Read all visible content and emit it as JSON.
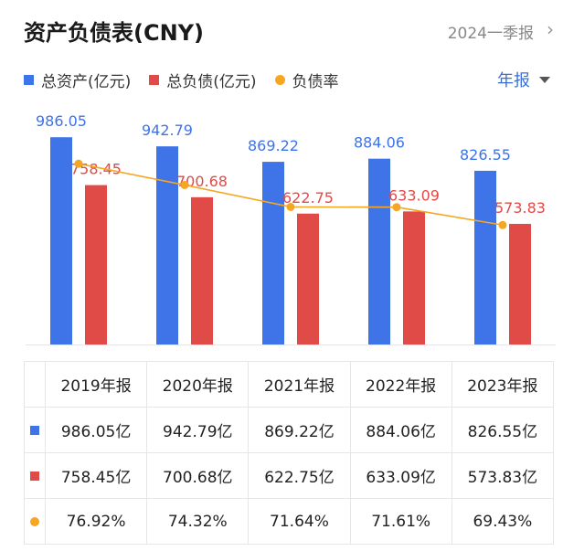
{
  "header": {
    "title": "资产负债表(CNY)",
    "period": "2024一季报",
    "chevron_icon": "chevron-right-icon"
  },
  "legend": [
    {
      "label": "总资产(亿元)",
      "color": "#3e74e8",
      "shape": "square"
    },
    {
      "label": "总负债(亿元)",
      "color": "#e04b47",
      "shape": "square"
    },
    {
      "label": "负债率",
      "color": "#f5a623",
      "shape": "circle"
    }
  ],
  "frequency": {
    "label": "年报",
    "icon": "caret-down-icon"
  },
  "chart_data": {
    "type": "bar",
    "categories": [
      "2019年报",
      "2020年报",
      "2021年报",
      "2022年报",
      "2023年报"
    ],
    "series": [
      {
        "name": "总资产(亿元)",
        "values": [
          986.05,
          942.79,
          869.22,
          884.06,
          826.55
        ],
        "color": "#3e74e8",
        "value_labels": [
          "986.05",
          "942.79",
          "869.22",
          "884.06",
          "826.55"
        ]
      },
      {
        "name": "总负债(亿元)",
        "values": [
          758.45,
          700.68,
          622.75,
          633.09,
          573.83
        ],
        "color": "#e04b47",
        "value_labels": [
          "758.45",
          "700.68",
          "622.75",
          "633.09",
          "573.83"
        ]
      },
      {
        "name": "负债率",
        "type": "line",
        "values": [
          76.92,
          74.32,
          71.64,
          71.61,
          69.43
        ],
        "color": "#f5a623"
      }
    ],
    "ylim": [
      0,
      1000
    ]
  },
  "table": {
    "headers": [
      "2019年报",
      "2020年报",
      "2021年报",
      "2022年报",
      "2023年报"
    ],
    "rows": [
      {
        "color": "#3e74e8",
        "shape": "square",
        "cells": [
          "986.05亿",
          "942.79亿",
          "869.22亿",
          "884.06亿",
          "826.55亿"
        ]
      },
      {
        "color": "#e04b47",
        "shape": "square",
        "cells": [
          "758.45亿",
          "700.68亿",
          "622.75亿",
          "633.09亿",
          "573.83亿"
        ]
      },
      {
        "color": "#f5a623",
        "shape": "circle",
        "cells": [
          "76.92%",
          "74.32%",
          "71.64%",
          "71.61%",
          "69.43%"
        ]
      }
    ]
  }
}
